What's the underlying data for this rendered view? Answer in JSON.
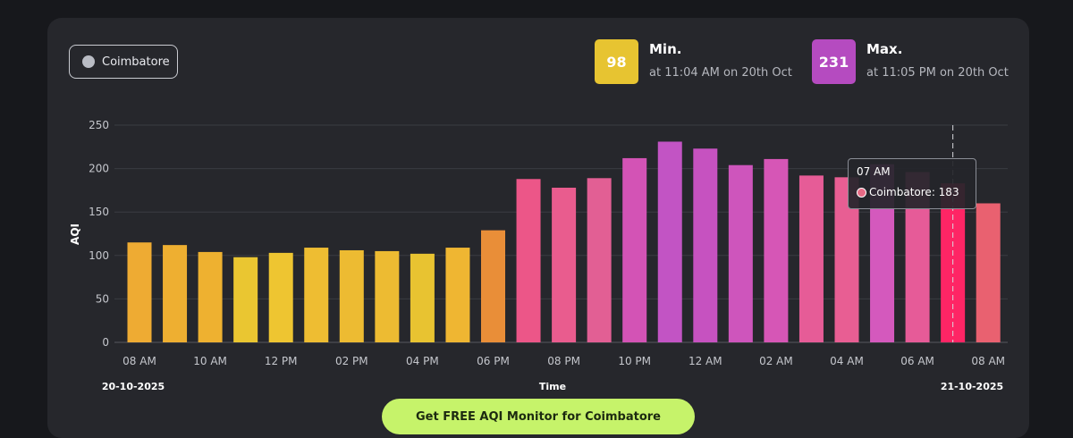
{
  "location": {
    "label": "Coimbatore",
    "color": "#b9bcc4"
  },
  "min": {
    "value": "98",
    "label": "Min.",
    "sub": "at 11:04 AM on 20th Oct",
    "color": "#e7c431"
  },
  "max": {
    "value": "231",
    "label": "Max.",
    "sub": "at 11:05 PM on 20th Oct",
    "color": "#b54bc0"
  },
  "tooltip": {
    "time": "07 AM",
    "series_label": "Coimbatore: 183",
    "color": "#e66a85"
  },
  "cta": {
    "label": "Get FREE AQI Monitor for Coimbatore"
  },
  "chart_data": {
    "type": "bar",
    "ylabel": "AQI",
    "xlabel": "Time",
    "ylim": [
      0,
      250
    ],
    "yticks": [
      0,
      50,
      100,
      150,
      200,
      250
    ],
    "grid": true,
    "start_date": "20-10-2025",
    "end_date": "21-10-2025",
    "x_tick_labels": [
      "08 AM",
      "10 AM",
      "12 PM",
      "02 PM",
      "04 PM",
      "06 PM",
      "08 PM",
      "10 PM",
      "12 AM",
      "02 AM",
      "04 AM",
      "06 AM",
      "08 AM"
    ],
    "categories": [
      "08 AM",
      "09 AM",
      "10 AM",
      "11 AM",
      "12 PM",
      "01 PM",
      "02 PM",
      "03 PM",
      "04 PM",
      "05 PM",
      "06 PM",
      "07 PM",
      "08 PM",
      "09 PM",
      "10 PM",
      "11 PM",
      "12 AM",
      "01 AM",
      "02 AM",
      "03 AM",
      "04 AM",
      "05 AM",
      "06 AM",
      "07 AM",
      "08 AM"
    ],
    "values": [
      115,
      112,
      104,
      98,
      103,
      109,
      106,
      105,
      102,
      109,
      129,
      188,
      178,
      189,
      212,
      231,
      223,
      204,
      211,
      192,
      190,
      205,
      196,
      183,
      160
    ],
    "series": [
      {
        "name": "Coimbatore"
      }
    ],
    "highlighted_index": 23,
    "colors": [
      "#eeab33",
      "#eeaf31",
      "#eeb130",
      "#eac631",
      "#eec531",
      "#eebd32",
      "#edbb32",
      "#edbb32",
      "#e8c331",
      "#efb632",
      "#e98e38",
      "#ec5688",
      "#e95c8e",
      "#e25f94",
      "#d353b5",
      "#c254c4",
      "#c652c0",
      "#ce55bc",
      "#d656b6",
      "#e65c97",
      "#e85e93",
      "#d459bd",
      "#e65b98",
      "#fe2565",
      "#e96170"
    ]
  }
}
